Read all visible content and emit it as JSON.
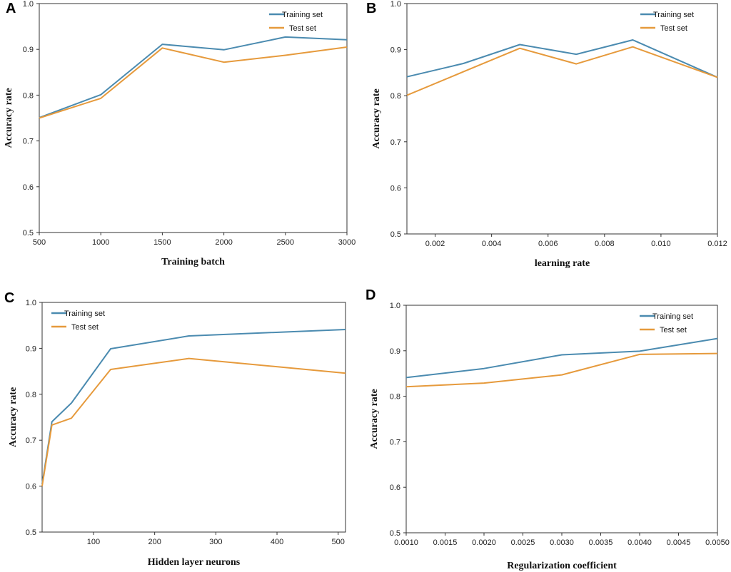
{
  "colors": {
    "training": "#4b8bb0",
    "test": "#e69a3c"
  },
  "chart_data": [
    {
      "panel": "A",
      "type": "line",
      "xlabel": "Training batch",
      "ylabel": "Accuracy rate",
      "xlim": [
        500,
        3000
      ],
      "ylim": [
        0.5,
        1.0
      ],
      "xticks": [
        500,
        1000,
        1500,
        2000,
        2500,
        3000
      ],
      "xtick_labels": [
        "500",
        "1000",
        "1500",
        "2000",
        "2500",
        "3000"
      ],
      "yticks": [
        0.5,
        0.6,
        0.7,
        0.8,
        0.9,
        1.0
      ],
      "ytick_labels": [
        "0.5",
        "0.6",
        "0.7",
        "0.8",
        "0.9",
        "1.0"
      ],
      "legend_position": "top-right",
      "series": [
        {
          "name": "Training set",
          "x": [
            500,
            1000,
            1500,
            2000,
            2500,
            3000
          ],
          "y": [
            0.751,
            0.801,
            0.911,
            0.899,
            0.927,
            0.921
          ]
        },
        {
          "name": "Test set",
          "x": [
            500,
            1000,
            1500,
            2000,
            2500,
            3000
          ],
          "y": [
            0.75,
            0.793,
            0.903,
            0.872,
            0.887,
            0.905
          ]
        }
      ]
    },
    {
      "panel": "B",
      "type": "line",
      "xlabel": "learning rate",
      "ylabel": "Accuracy rate",
      "xlim": [
        0.001,
        0.012
      ],
      "ylim": [
        0.5,
        1.0
      ],
      "xticks": [
        0.002,
        0.004,
        0.006,
        0.008,
        0.01,
        0.012
      ],
      "xtick_labels": [
        "0.002",
        "0.004",
        "0.006",
        "0.008",
        "0.010",
        "0.012"
      ],
      "yticks": [
        0.5,
        0.6,
        0.7,
        0.8,
        0.9,
        1.0
      ],
      "ytick_labels": [
        "0.5",
        "0.6",
        "0.7",
        "0.8",
        "0.9",
        "1.0"
      ],
      "legend_position": "top-right",
      "series": [
        {
          "name": "Training set",
          "x": [
            0.001,
            0.003,
            0.005,
            0.007,
            0.009,
            0.012
          ],
          "y": [
            0.841,
            0.87,
            0.911,
            0.89,
            0.921,
            0.84
          ]
        },
        {
          "name": "Test set",
          "x": [
            0.001,
            0.003,
            0.005,
            0.007,
            0.009,
            0.012
          ],
          "y": [
            0.801,
            0.852,
            0.903,
            0.869,
            0.906,
            0.84
          ]
        }
      ]
    },
    {
      "panel": "C",
      "type": "line",
      "xlabel": "Hidden layer neurons",
      "ylabel": "Accuracy rate",
      "xlim": [
        16,
        512
      ],
      "ylim": [
        0.5,
        1.0
      ],
      "xticks": [
        100,
        200,
        300,
        400,
        500
      ],
      "xtick_labels": [
        "100",
        "200",
        "300",
        "400",
        "500"
      ],
      "yticks": [
        0.5,
        0.6,
        0.7,
        0.8,
        0.9,
        1.0
      ],
      "ytick_labels": [
        "0.5",
        "0.6",
        "0.7",
        "0.8",
        "0.9",
        "1.0"
      ],
      "legend_position": "top-left",
      "series": [
        {
          "name": "Training set",
          "x": [
            16,
            32,
            64,
            128,
            256,
            512
          ],
          "y": [
            0.604,
            0.74,
            0.781,
            0.899,
            0.927,
            0.941
          ]
        },
        {
          "name": "Test set",
          "x": [
            16,
            32,
            64,
            128,
            256,
            512
          ],
          "y": [
            0.6,
            0.733,
            0.748,
            0.854,
            0.878,
            0.846
          ]
        }
      ]
    },
    {
      "panel": "D",
      "type": "line",
      "xlabel": "Regularization coefficient",
      "ylabel": "Accuracy rate",
      "xlim": [
        0.001,
        0.005
      ],
      "ylim": [
        0.5,
        1.0
      ],
      "xticks": [
        0.001,
        0.0015,
        0.002,
        0.0025,
        0.003,
        0.0035,
        0.004,
        0.0045,
        0.005
      ],
      "xtick_labels": [
        "0.0010",
        "0.0015",
        "0.0020",
        "0.0025",
        "0.0030",
        "0.0035",
        "0.0040",
        "0.0045",
        "0.0050"
      ],
      "yticks": [
        0.5,
        0.6,
        0.7,
        0.8,
        0.9,
        1.0
      ],
      "ytick_labels": [
        "0.5",
        "0.6",
        "0.7",
        "0.8",
        "0.9",
        "1.0"
      ],
      "legend_position": "top-right",
      "series": [
        {
          "name": "Training set",
          "x": [
            0.001,
            0.002,
            0.003,
            0.004,
            0.005
          ],
          "y": [
            0.841,
            0.861,
            0.891,
            0.899,
            0.927
          ]
        },
        {
          "name": "Test set",
          "x": [
            0.001,
            0.002,
            0.003,
            0.004,
            0.005
          ],
          "y": [
            0.821,
            0.829,
            0.847,
            0.892,
            0.894
          ]
        }
      ]
    }
  ]
}
